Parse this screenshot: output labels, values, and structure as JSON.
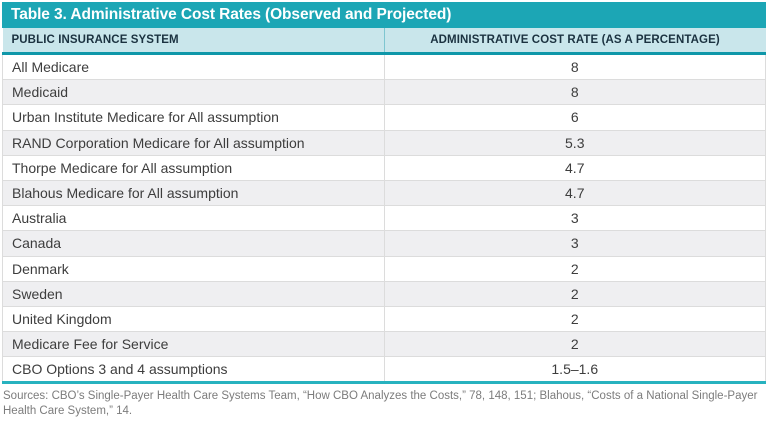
{
  "chart_data": {
    "type": "table",
    "title": "Table 3. Administrative Cost Rates (Observed and Projected)",
    "columns": [
      "PUBLIC INSURANCE SYSTEM",
      "ADMINISTRATIVE COST RATE (AS A PERCENTAGE)"
    ],
    "rows": [
      [
        "All Medicare",
        "8"
      ],
      [
        "Medicaid",
        "8"
      ],
      [
        "Urban Institute Medicare for All assumption",
        "6"
      ],
      [
        "RAND Corporation Medicare for All assumption",
        "5.3"
      ],
      [
        "Thorpe Medicare for All assumption",
        "4.7"
      ],
      [
        "Blahous Medicare for All assumption",
        "4.7"
      ],
      [
        "Australia",
        "3"
      ],
      [
        "Canada",
        "3"
      ],
      [
        "Denmark",
        "2"
      ],
      [
        "Sweden",
        "2"
      ],
      [
        "United Kingdom",
        "2"
      ],
      [
        "Medicare Fee for Service",
        "2"
      ],
      [
        "CBO Options 3 and 4 assumptions",
        "1.5–1.6"
      ]
    ],
    "layout": {
      "column_split": "50/50",
      "rate_column_alignment": "center",
      "zebra_striping": true
    }
  },
  "source_note": "Sources: CBO’s Single-Payer Health Care Systems Team, “How CBO Analyzes the Costs,” 78, 148, 151; Blahous, “Costs of a National Single-Payer Health Care System,” 14.",
  "colors": {
    "title_bar_bg": "#1CA6B5",
    "title_text": "#FFFFFF",
    "header_bg": "#C9E6EB",
    "header_text": "#1B3240",
    "header_rule": "#0F97A9",
    "header_divider": "#7EC6D0",
    "bottom_rule": "#27B2BF",
    "row_alt_bg": "#EFEFF1",
    "row_border": "#DCDCDC",
    "body_text": "#3D3D3D",
    "source_text": "#7C7C7C"
  }
}
